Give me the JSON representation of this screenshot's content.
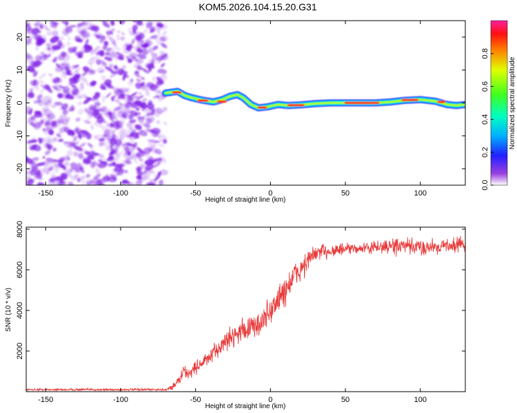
{
  "title": "KOM5.2026.104.15.20.G31",
  "colors": {
    "noise": "#7d1ce6",
    "line": "#e83a3a",
    "axis": "#000000"
  },
  "chart_data": [
    {
      "type": "heatmap",
      "name": "spectrogram",
      "xlabel": "Height of straight line (km)",
      "ylabel": "Frequency (Hz)",
      "xlim": [
        -163,
        130
      ],
      "ylim": [
        -25,
        25
      ],
      "x_ticks": [
        -150,
        -100,
        -50,
        0,
        50,
        100
      ],
      "y_ticks": [
        -20,
        -10,
        0,
        10,
        20
      ],
      "colorbar": {
        "label": "Normalized spectral amplitude",
        "range": [
          0,
          1
        ],
        "ticks": [
          0.0,
          0.2,
          0.4,
          0.6,
          0.8
        ]
      },
      "noise_region_x": [
        -163,
        -70
      ],
      "signal_track": [
        {
          "x": -70,
          "f": 3.0
        },
        {
          "x": -62,
          "f": 3.5
        },
        {
          "x": -57,
          "f": 2.2
        },
        {
          "x": -52,
          "f": 1.5
        },
        {
          "x": -45,
          "f": 0.8
        },
        {
          "x": -38,
          "f": 0.3
        },
        {
          "x": -32,
          "f": 1.0
        },
        {
          "x": -27,
          "f": 2.0
        },
        {
          "x": -22,
          "f": 2.5
        },
        {
          "x": -18,
          "f": 1.5
        },
        {
          "x": -13,
          "f": -0.5
        },
        {
          "x": -8,
          "f": -1.5
        },
        {
          "x": -2,
          "f": -1.2
        },
        {
          "x": 5,
          "f": -0.5
        },
        {
          "x": 12,
          "f": -0.8
        },
        {
          "x": 20,
          "f": -0.6
        },
        {
          "x": 30,
          "f": -0.2
        },
        {
          "x": 40,
          "f": 0.0
        },
        {
          "x": 50,
          "f": 0.0
        },
        {
          "x": 60,
          "f": 0.0
        },
        {
          "x": 70,
          "f": 0.0
        },
        {
          "x": 80,
          "f": 0.3
        },
        {
          "x": 90,
          "f": 0.8
        },
        {
          "x": 100,
          "f": 1.0
        },
        {
          "x": 110,
          "f": 0.5
        },
        {
          "x": 118,
          "f": -0.5
        },
        {
          "x": 124,
          "f": -0.8
        },
        {
          "x": 130,
          "f": -0.5
        }
      ],
      "bright_segments": [
        {
          "x0": -65,
          "x1": -60,
          "f": 3.2
        },
        {
          "x0": -48,
          "x1": -42,
          "f": 0.7
        },
        {
          "x0": -35,
          "x1": -30,
          "f": 0.4
        },
        {
          "x0": -8,
          "x1": -3,
          "f": -1.4
        },
        {
          "x0": 12,
          "x1": 22,
          "f": -0.7
        },
        {
          "x0": 50,
          "x1": 72,
          "f": 0.0
        },
        {
          "x0": 88,
          "x1": 98,
          "f": 0.9
        },
        {
          "x0": 112,
          "x1": 116,
          "f": 0.3
        }
      ]
    },
    {
      "type": "line",
      "name": "snr",
      "xlabel": "Height of straight line (km)",
      "ylabel": "SNR (10 * v/v)",
      "xlim": [
        -163,
        130
      ],
      "ylim": [
        0,
        8100
      ],
      "x_ticks": [
        -150,
        -100,
        -50,
        0,
        50,
        100
      ],
      "y_ticks": [
        2000,
        4000,
        6000,
        8000
      ],
      "trend": {
        "x": [
          -163,
          -120,
          -80,
          -70,
          -65,
          -60,
          -58,
          -55,
          -50,
          -40,
          -30,
          -20,
          -10,
          -5,
          0,
          5,
          10,
          15,
          20,
          25,
          30,
          40,
          50,
          60,
          70,
          80,
          90,
          100,
          110,
          120,
          130
        ],
        "y": [
          100,
          100,
          100,
          100,
          250,
          650,
          1050,
          850,
          1200,
          1700,
          2500,
          3000,
          3200,
          3500,
          4000,
          4500,
          5000,
          5600,
          6000,
          6450,
          6800,
          6950,
          7000,
          7050,
          7100,
          7150,
          7150,
          7100,
          7150,
          7200,
          7300
        ]
      },
      "noise_amplitude": {
        "x": [
          -163,
          -70,
          -60,
          -40,
          -10,
          10,
          30,
          60,
          80,
          100,
          130
        ],
        "y": [
          60,
          60,
          300,
          450,
          700,
          900,
          500,
          250,
          450,
          450,
          400
        ]
      }
    }
  ]
}
